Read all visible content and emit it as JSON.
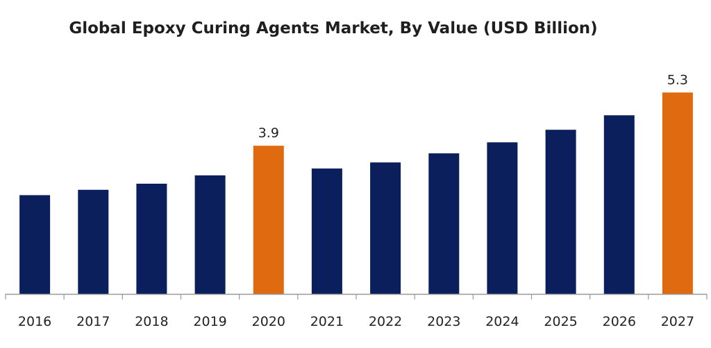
{
  "chart_data": {
    "type": "bar",
    "title": "Global Epoxy Curing Agents Market, By Value (USD Billion)",
    "categories": [
      "2016",
      "2017",
      "2018",
      "2019",
      "2020",
      "2021",
      "2022",
      "2023",
      "2024",
      "2025",
      "2026",
      "2027"
    ],
    "values": [
      2.6,
      2.74,
      2.9,
      3.12,
      3.9,
      3.3,
      3.46,
      3.7,
      3.99,
      4.32,
      4.7,
      5.3
    ],
    "highlight_categories": [
      "2020",
      "2027"
    ],
    "data_labels": {
      "2020": "3.9",
      "2027": "5.3"
    },
    "ylim": [
      0,
      5.6
    ],
    "xlabel": "",
    "ylabel": "",
    "grid": false,
    "legend": "none",
    "colors": {
      "bar": "#0a1f5c",
      "highlight": "#e06a10",
      "axis": "#999999"
    }
  }
}
